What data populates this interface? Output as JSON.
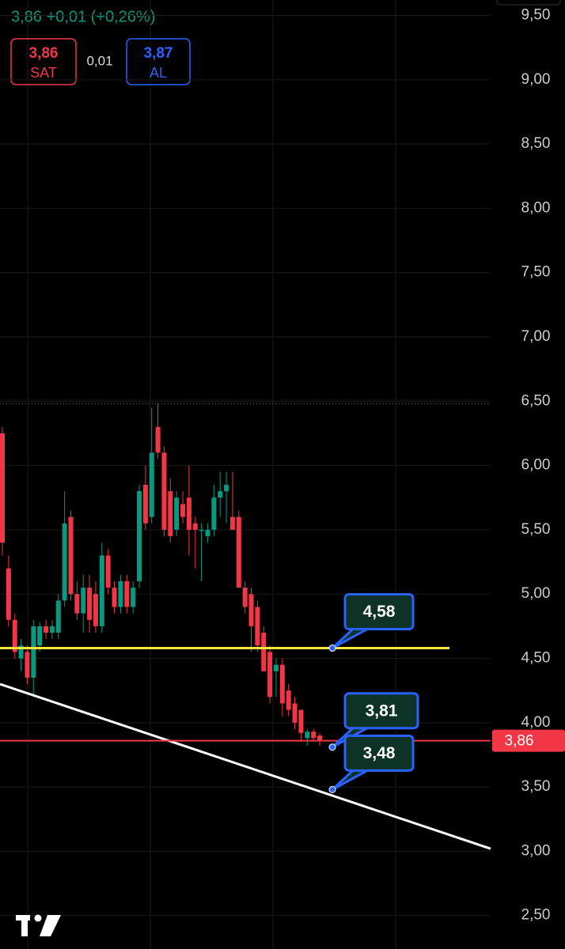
{
  "quote": {
    "headline": "3,86 +0,01 (+0,26%)",
    "sell_price": "3,86",
    "sell_label": "SAT",
    "spread": "0,01",
    "buy_price": "3,87",
    "buy_label": "AL"
  },
  "chart_data": {
    "type": "candlestick",
    "up_color": "#089981",
    "down_color": "#f23645",
    "open": [
      6.25,
      5.2,
      4.8,
      4.5,
      4.55,
      4.35,
      4.6,
      4.75,
      4.7,
      4.7,
      4.95,
      5.6,
      5.0,
      4.85,
      5.05,
      5.0,
      4.75,
      5.3,
      5.05,
      4.9,
      5.1,
      4.9,
      5.1,
      5.85,
      5.6,
      6.3,
      6.1,
      5.8,
      5.5,
      5.7,
      5.75,
      5.55,
      5.5,
      5.45,
      5.5,
      5.75,
      5.8,
      5.6,
      5.6,
      5.05,
      5.0,
      4.9,
      4.7,
      4.55,
      4.4,
      4.45,
      4.25,
      4.15,
      4.1,
      3.88,
      3.93,
      3.9
    ],
    "high": [
      6.3,
      5.3,
      4.85,
      4.65,
      4.6,
      4.8,
      4.78,
      4.8,
      4.8,
      5.0,
      5.8,
      5.65,
      5.1,
      5.15,
      5.15,
      5.1,
      5.4,
      5.35,
      5.1,
      5.15,
      5.15,
      5.1,
      5.85,
      6.0,
      6.45,
      6.48,
      6.15,
      5.9,
      5.8,
      5.8,
      6.0,
      5.6,
      5.55,
      5.55,
      5.85,
      5.95,
      5.95,
      5.95,
      5.65,
      5.1,
      5.05,
      4.95,
      4.75,
      4.6,
      4.5,
      4.5,
      4.3,
      4.2,
      4.1,
      3.95,
      3.95,
      3.92
    ],
    "low": [
      5.3,
      4.75,
      4.5,
      4.4,
      4.3,
      4.22,
      4.55,
      4.65,
      4.65,
      4.65,
      4.9,
      4.95,
      4.8,
      4.7,
      4.7,
      4.7,
      4.7,
      5.0,
      4.85,
      4.85,
      4.85,
      4.85,
      5.05,
      5.5,
      5.55,
      6.05,
      5.45,
      5.4,
      5.45,
      5.55,
      5.3,
      5.2,
      5.1,
      5.4,
      5.45,
      5.6,
      5.55,
      5.5,
      5.05,
      4.85,
      4.55,
      4.55,
      4.4,
      4.15,
      4.2,
      4.05,
      4.05,
      3.95,
      3.85,
      3.82,
      3.85,
      3.82
    ],
    "close": [
      5.4,
      4.8,
      4.55,
      4.6,
      4.35,
      4.75,
      4.75,
      4.7,
      4.75,
      4.95,
      5.55,
      5.0,
      4.85,
      5.05,
      4.8,
      4.75,
      5.3,
      5.05,
      4.9,
      5.1,
      4.9,
      5.05,
      5.8,
      5.55,
      6.1,
      6.1,
      5.5,
      5.45,
      5.75,
      5.6,
      5.5,
      5.5,
      5.5,
      5.5,
      5.75,
      5.8,
      5.85,
      5.5,
      5.05,
      4.9,
      4.75,
      4.6,
      4.4,
      4.2,
      4.45,
      4.15,
      4.1,
      4.0,
      3.92,
      3.93,
      3.88,
      3.86
    ],
    "ylim": [
      2.24,
      9.62
    ],
    "yticks": [
      {
        "value": 2.5,
        "label": "2,50"
      },
      {
        "value": 3,
        "label": "3,00"
      },
      {
        "value": 3.5,
        "label": "3,50"
      },
      {
        "value": 4,
        "label": "4,00"
      },
      {
        "value": 4.5,
        "label": "4,50"
      },
      {
        "value": 5,
        "label": "5,00"
      },
      {
        "value": 5.5,
        "label": "5,50"
      },
      {
        "value": 6,
        "label": "6,00"
      },
      {
        "value": 6.5,
        "label": "6,50"
      },
      {
        "value": 7,
        "label": "7,00"
      },
      {
        "value": 7.5,
        "label": "7,50"
      },
      {
        "value": 8,
        "label": "8,00"
      },
      {
        "value": 8.5,
        "label": "8,50"
      },
      {
        "value": 9,
        "label": "9,00"
      },
      {
        "value": 9.5,
        "label": "9,50"
      }
    ],
    "grid": true,
    "last_price": {
      "value": 3.86,
      "label": "3,86"
    },
    "level_line": {
      "value": 4.58,
      "color": "#f5e63a"
    },
    "trendline": {
      "start": 4.3,
      "end": 3.02,
      "color": "#ffffff"
    },
    "annotations": [
      {
        "value": 4.58,
        "label": "4,58"
      },
      {
        "value": 3.81,
        "label": "3,81"
      },
      {
        "value": 3.48,
        "label": "3,48"
      }
    ]
  }
}
